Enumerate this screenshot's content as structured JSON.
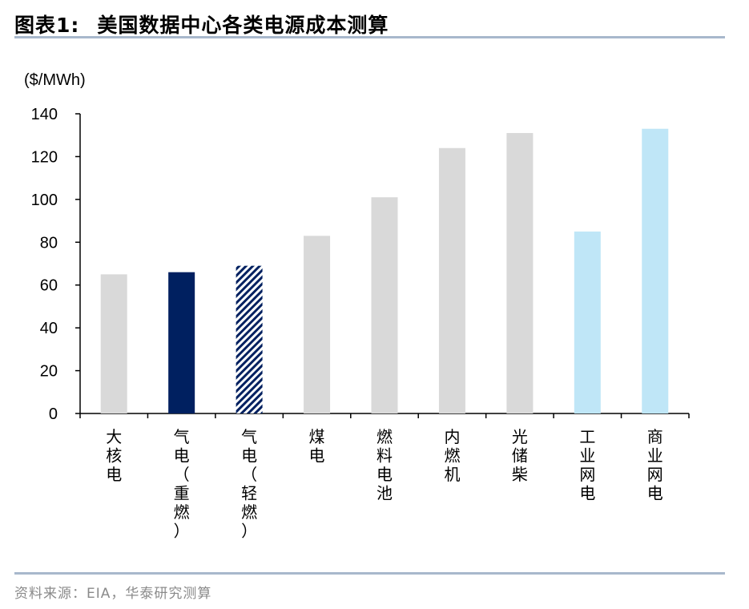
{
  "header": {
    "figure_number": "图表1:",
    "title": "美国数据中心各类电源成本测算"
  },
  "footer": {
    "source": "资料来源：EIA，华泰研究测算"
  },
  "chart_data": {
    "type": "bar",
    "unit_label": "($/MWh)",
    "categories": [
      "大核电",
      "气电（重燃）",
      "气电（轻燃）",
      "煤电",
      "燃料电池",
      "内燃机",
      "光储柴",
      "工业网电",
      "商业网电"
    ],
    "values": [
      65,
      66,
      69,
      83,
      101,
      124,
      131,
      85,
      133
    ],
    "bar_styles": [
      "solid",
      "solid",
      "hatched",
      "solid",
      "solid",
      "solid",
      "solid",
      "solid",
      "solid"
    ],
    "bar_colors": [
      "#d9d9d9",
      "#002060",
      "#002060",
      "#d9d9d9",
      "#d9d9d9",
      "#d9d9d9",
      "#d9d9d9",
      "#bfe6f7",
      "#bfe6f7"
    ],
    "ylim": [
      0,
      140
    ],
    "yticks": [
      0,
      20,
      40,
      60,
      80,
      100,
      120,
      140
    ],
    "grid": false,
    "legend": "none",
    "xlabel": "",
    "ylabel": ""
  }
}
